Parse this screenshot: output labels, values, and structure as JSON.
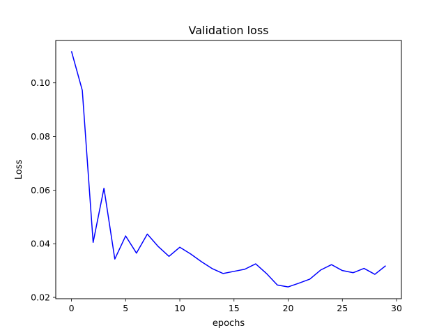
{
  "chart_data": {
    "type": "line",
    "title": "Validation loss",
    "xlabel": "epochs",
    "ylabel": "Loss",
    "xlim": [
      -1.45,
      30.45
    ],
    "ylim": [
      0.0195,
      0.1158
    ],
    "xticks": [
      0,
      5,
      10,
      15,
      20,
      25,
      30
    ],
    "xtick_labels": [
      "0",
      "5",
      "10",
      "15",
      "20",
      "25",
      "30"
    ],
    "yticks": [
      0.02,
      0.04,
      0.06,
      0.08,
      0.1
    ],
    "ytick_labels": [
      "0.02",
      "0.04",
      "0.06",
      "0.08",
      "0.10"
    ],
    "grid": false,
    "series": [
      {
        "color": "#0000ff",
        "x": [
          0,
          1,
          2,
          3,
          4,
          5,
          6,
          7,
          8,
          9,
          10,
          11,
          12,
          13,
          14,
          15,
          16,
          17,
          18,
          19,
          20,
          21,
          22,
          23,
          24,
          25,
          26,
          27,
          28,
          29
        ],
        "values": [
          0.1118,
          0.0972,
          0.0405,
          0.0607,
          0.0343,
          0.0429,
          0.0365,
          0.0436,
          0.039,
          0.0353,
          0.0387,
          0.0362,
          0.0333,
          0.0307,
          0.0289,
          0.0297,
          0.0305,
          0.0325,
          0.0289,
          0.0246,
          0.0239,
          0.0253,
          0.0268,
          0.0302,
          0.0322,
          0.03,
          0.0292,
          0.0308,
          0.0286,
          0.0318
        ]
      }
    ]
  }
}
